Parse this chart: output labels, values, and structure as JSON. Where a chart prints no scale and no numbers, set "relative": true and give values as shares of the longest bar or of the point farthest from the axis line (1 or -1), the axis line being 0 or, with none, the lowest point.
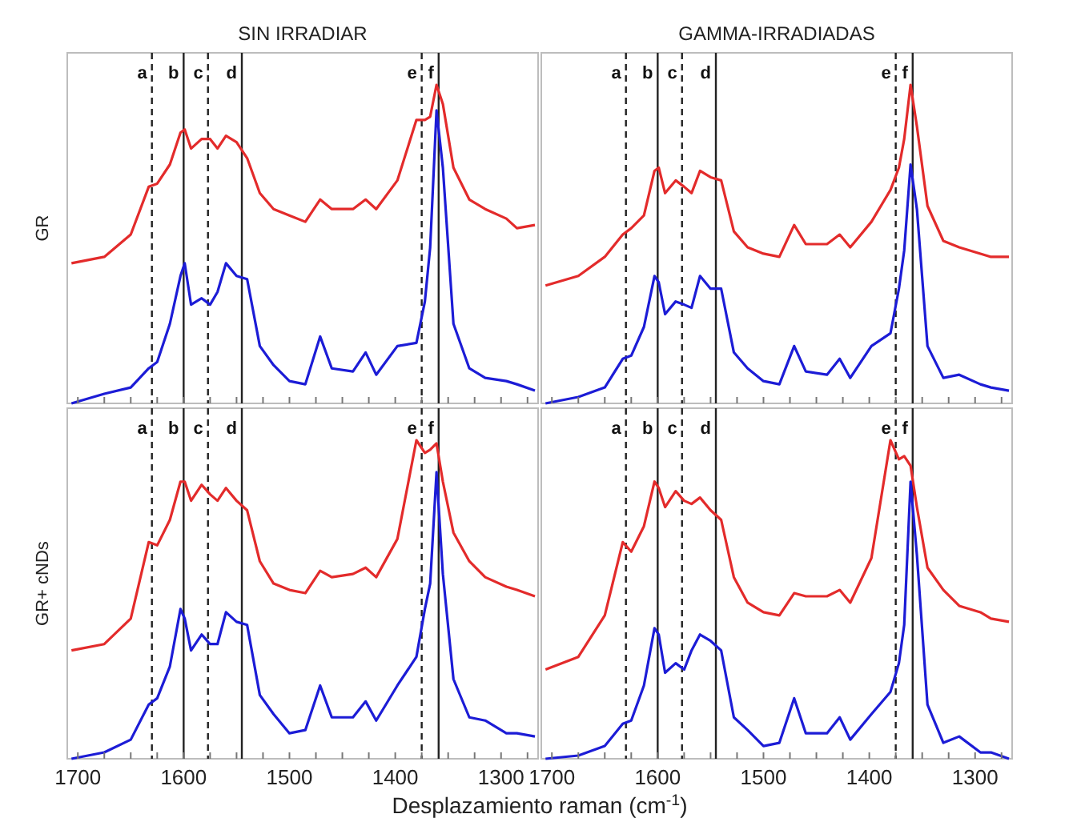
{
  "chart_data": [
    {
      "type": "line",
      "title": "SIN IRRADIAR",
      "ylabel": "GR",
      "relative": true,
      "tick_labels": false,
      "xlim": [
        1710,
        1265
      ],
      "xticks": [
        {
          "value": 1700,
          "label": null
        },
        {
          "value": 1675,
          "label": null
        },
        {
          "value": 1650,
          "label": null
        },
        {
          "value": 1625,
          "label": null
        },
        {
          "value": 1600,
          "label": null
        },
        {
          "value": 1575,
          "label": null
        },
        {
          "value": 1550,
          "label": null
        },
        {
          "value": 1525,
          "label": null
        },
        {
          "value": 1500,
          "label": null
        },
        {
          "value": 1475,
          "label": null
        },
        {
          "value": 1450,
          "label": null
        },
        {
          "value": 1425,
          "label": null
        },
        {
          "value": 1400,
          "label": null
        },
        {
          "value": 1375,
          "label": null
        },
        {
          "value": 1350,
          "label": null
        },
        {
          "value": 1325,
          "label": null
        },
        {
          "value": 1300,
          "label": null
        },
        {
          "value": 1275,
          "label": null
        }
      ],
      "x": [
        1706,
        1675,
        1650,
        1633,
        1625,
        1613,
        1603,
        1599,
        1593,
        1583,
        1575,
        1568,
        1560,
        1550,
        1540,
        1528,
        1515,
        1500,
        1485,
        1471,
        1460,
        1440,
        1428,
        1418,
        1398,
        1380,
        1372,
        1367,
        1361,
        1355,
        1345,
        1330,
        1315,
        1295,
        1285,
        1268
      ],
      "series": [
        {
          "color": "#e32b2b",
          "values": [
            0.44,
            0.46,
            0.53,
            0.68,
            0.69,
            0.75,
            0.85,
            0.86,
            0.8,
            0.83,
            0.83,
            0.8,
            0.84,
            0.82,
            0.77,
            0.66,
            0.61,
            0.59,
            0.57,
            0.64,
            0.61,
            0.61,
            0.64,
            0.61,
            0.7,
            0.89,
            0.89,
            0.9,
            1.0,
            0.94,
            0.74,
            0.64,
            0.61,
            0.58,
            0.55,
            0.56
          ]
        },
        {
          "color": "#1c1cd6",
          "values": [
            0.0,
            0.03,
            0.05,
            0.11,
            0.13,
            0.25,
            0.4,
            0.44,
            0.31,
            0.33,
            0.31,
            0.35,
            0.44,
            0.4,
            0.39,
            0.18,
            0.12,
            0.07,
            0.06,
            0.21,
            0.11,
            0.1,
            0.16,
            0.09,
            0.18,
            0.19,
            0.32,
            0.49,
            0.92,
            0.74,
            0.25,
            0.11,
            0.08,
            0.07,
            0.06,
            0.04
          ]
        }
      ],
      "ref_lines": [
        {
          "axis": "x",
          "value": 1630,
          "label": "a",
          "line_style": "dashed"
        },
        {
          "axis": "x",
          "value": 1600,
          "label": "b",
          "line_style": "solid"
        },
        {
          "axis": "x",
          "value": 1577,
          "label": "c",
          "line_style": "dashed"
        },
        {
          "axis": "x",
          "value": 1545,
          "label": "d",
          "line_style": "solid"
        },
        {
          "axis": "x",
          "value": 1375,
          "label": "e",
          "line_style": "dashed"
        },
        {
          "axis": "x",
          "value": 1359,
          "label": "f",
          "line_style": "solid"
        }
      ]
    },
    {
      "type": "line",
      "title": "GAMMA-IRRADIADAS",
      "relative": true,
      "tick_labels": false,
      "xlim": [
        1710,
        1265
      ],
      "xticks": [
        {
          "value": 1700,
          "label": null
        },
        {
          "value": 1675,
          "label": null
        },
        {
          "value": 1650,
          "label": null
        },
        {
          "value": 1625,
          "label": null
        },
        {
          "value": 1600,
          "label": null
        },
        {
          "value": 1575,
          "label": null
        },
        {
          "value": 1550,
          "label": null
        },
        {
          "value": 1525,
          "label": null
        },
        {
          "value": 1500,
          "label": null
        },
        {
          "value": 1475,
          "label": null
        },
        {
          "value": 1450,
          "label": null
        },
        {
          "value": 1425,
          "label": null
        },
        {
          "value": 1400,
          "label": null
        },
        {
          "value": 1375,
          "label": null
        },
        {
          "value": 1350,
          "label": null
        },
        {
          "value": 1325,
          "label": null
        },
        {
          "value": 1300,
          "label": null
        },
        {
          "value": 1275,
          "label": null
        }
      ],
      "x": [
        1706,
        1675,
        1650,
        1633,
        1625,
        1613,
        1603,
        1599,
        1593,
        1583,
        1575,
        1568,
        1560,
        1550,
        1540,
        1528,
        1515,
        1500,
        1485,
        1471,
        1460,
        1440,
        1428,
        1418,
        1398,
        1380,
        1372,
        1367,
        1361,
        1355,
        1345,
        1330,
        1315,
        1295,
        1285,
        1268
      ],
      "series": [
        {
          "color": "#e32b2b",
          "values": [
            0.37,
            0.4,
            0.46,
            0.53,
            0.55,
            0.59,
            0.73,
            0.74,
            0.66,
            0.7,
            0.68,
            0.66,
            0.73,
            0.71,
            0.7,
            0.54,
            0.49,
            0.47,
            0.46,
            0.56,
            0.5,
            0.5,
            0.53,
            0.49,
            0.57,
            0.67,
            0.74,
            0.83,
            1.0,
            0.87,
            0.62,
            0.51,
            0.49,
            0.47,
            0.46,
            0.46
          ]
        },
        {
          "color": "#1c1cd6",
          "values": [
            0.0,
            0.02,
            0.05,
            0.14,
            0.15,
            0.24,
            0.4,
            0.38,
            0.28,
            0.32,
            0.31,
            0.3,
            0.4,
            0.36,
            0.36,
            0.16,
            0.11,
            0.07,
            0.06,
            0.18,
            0.1,
            0.09,
            0.14,
            0.08,
            0.18,
            0.22,
            0.36,
            0.48,
            0.75,
            0.61,
            0.18,
            0.08,
            0.09,
            0.06,
            0.05,
            0.04
          ]
        }
      ],
      "ref_lines": [
        {
          "axis": "x",
          "value": 1630,
          "label": "a",
          "line_style": "dashed"
        },
        {
          "axis": "x",
          "value": 1600,
          "label": "b",
          "line_style": "solid"
        },
        {
          "axis": "x",
          "value": 1577,
          "label": "c",
          "line_style": "dashed"
        },
        {
          "axis": "x",
          "value": 1545,
          "label": "d",
          "line_style": "solid"
        },
        {
          "axis": "x",
          "value": 1375,
          "label": "e",
          "line_style": "dashed"
        },
        {
          "axis": "x",
          "value": 1359,
          "label": "f",
          "line_style": "solid"
        }
      ]
    },
    {
      "type": "line",
      "ylabel": "GR+ cNDs",
      "xlabel": "Desplazamiento raman (cm$^{-1}$)",
      "relative": true,
      "tick_labels": "x",
      "xlim": [
        1710,
        1265
      ],
      "xticks": [
        1700,
        {
          "value": 1675,
          "label": null
        },
        {
          "value": 1650,
          "label": null
        },
        {
          "value": 1625,
          "label": null
        },
        1600,
        {
          "value": 1575,
          "label": null
        },
        {
          "value": 1550,
          "label": null
        },
        {
          "value": 1525,
          "label": null
        },
        1500,
        {
          "value": 1475,
          "label": null
        },
        {
          "value": 1450,
          "label": null
        },
        {
          "value": 1425,
          "label": null
        },
        1400,
        {
          "value": 1375,
          "label": null
        },
        {
          "value": 1350,
          "label": null
        },
        {
          "value": 1325,
          "label": null
        },
        1300,
        {
          "value": 1275,
          "label": null
        }
      ],
      "x": [
        1706,
        1675,
        1650,
        1633,
        1625,
        1613,
        1603,
        1599,
        1593,
        1583,
        1575,
        1568,
        1560,
        1550,
        1540,
        1528,
        1515,
        1500,
        1485,
        1471,
        1460,
        1440,
        1428,
        1418,
        1398,
        1380,
        1372,
        1367,
        1361,
        1355,
        1345,
        1330,
        1315,
        1295,
        1285,
        1268
      ],
      "series": [
        {
          "color": "#e32b2b",
          "values": [
            0.34,
            0.36,
            0.44,
            0.68,
            0.67,
            0.75,
            0.87,
            0.87,
            0.81,
            0.86,
            0.83,
            0.81,
            0.85,
            0.81,
            0.78,
            0.62,
            0.55,
            0.53,
            0.52,
            0.59,
            0.57,
            0.58,
            0.6,
            0.57,
            0.69,
            1.0,
            0.96,
            0.97,
            0.99,
            0.87,
            0.71,
            0.62,
            0.57,
            0.54,
            0.53,
            0.51
          ]
        },
        {
          "color": "#1c1cd6",
          "values": [
            0.0,
            0.02,
            0.06,
            0.17,
            0.19,
            0.29,
            0.47,
            0.44,
            0.34,
            0.39,
            0.36,
            0.36,
            0.46,
            0.43,
            0.42,
            0.2,
            0.14,
            0.08,
            0.09,
            0.23,
            0.13,
            0.13,
            0.18,
            0.12,
            0.23,
            0.32,
            0.47,
            0.55,
            0.9,
            0.58,
            0.25,
            0.13,
            0.12,
            0.08,
            0.08,
            0.07
          ]
        }
      ],
      "ref_lines": [
        {
          "axis": "x",
          "value": 1630,
          "label": "a",
          "line_style": "dashed"
        },
        {
          "axis": "x",
          "value": 1600,
          "label": "b",
          "line_style": "solid"
        },
        {
          "axis": "x",
          "value": 1577,
          "label": "c",
          "line_style": "dashed"
        },
        {
          "axis": "x",
          "value": 1545,
          "label": "d",
          "line_style": "solid"
        },
        {
          "axis": "x",
          "value": 1375,
          "label": "e",
          "line_style": "dashed"
        },
        {
          "axis": "x",
          "value": 1359,
          "label": "f",
          "line_style": "solid"
        }
      ]
    },
    {
      "type": "line",
      "relative": true,
      "tick_labels": "x",
      "xlim": [
        1710,
        1265
      ],
      "xticks": [
        1700,
        {
          "value": 1675,
          "label": null
        },
        {
          "value": 1650,
          "label": null
        },
        {
          "value": 1625,
          "label": null
        },
        1600,
        {
          "value": 1575,
          "label": null
        },
        {
          "value": 1550,
          "label": null
        },
        {
          "value": 1525,
          "label": null
        },
        1500,
        {
          "value": 1475,
          "label": null
        },
        {
          "value": 1450,
          "label": null
        },
        {
          "value": 1425,
          "label": null
        },
        1400,
        {
          "value": 1375,
          "label": null
        },
        {
          "value": 1350,
          "label": null
        },
        {
          "value": 1325,
          "label": null
        },
        1300,
        {
          "value": 1275,
          "label": null
        }
      ],
      "x": [
        1706,
        1675,
        1650,
        1633,
        1625,
        1613,
        1603,
        1599,
        1593,
        1583,
        1575,
        1568,
        1560,
        1550,
        1540,
        1528,
        1515,
        1500,
        1485,
        1471,
        1460,
        1440,
        1428,
        1418,
        1398,
        1380,
        1372,
        1367,
        1361,
        1355,
        1345,
        1330,
        1315,
        1295,
        1285,
        1268
      ],
      "series": [
        {
          "color": "#e32b2b",
          "values": [
            0.28,
            0.32,
            0.45,
            0.68,
            0.65,
            0.73,
            0.87,
            0.85,
            0.79,
            0.84,
            0.81,
            0.8,
            0.82,
            0.78,
            0.75,
            0.57,
            0.49,
            0.46,
            0.45,
            0.52,
            0.51,
            0.51,
            0.53,
            0.49,
            0.63,
            1.0,
            0.94,
            0.95,
            0.92,
            0.79,
            0.6,
            0.53,
            0.48,
            0.46,
            0.44,
            0.43
          ]
        },
        {
          "color": "#1c1cd6",
          "values": [
            0.0,
            0.01,
            0.04,
            0.11,
            0.12,
            0.23,
            0.41,
            0.39,
            0.27,
            0.3,
            0.28,
            0.34,
            0.39,
            0.37,
            0.34,
            0.13,
            0.09,
            0.04,
            0.05,
            0.19,
            0.08,
            0.08,
            0.13,
            0.06,
            0.14,
            0.21,
            0.3,
            0.42,
            0.87,
            0.64,
            0.17,
            0.05,
            0.07,
            0.02,
            0.02,
            0.0
          ]
        }
      ],
      "ref_lines": [
        {
          "axis": "x",
          "value": 1630,
          "label": "a",
          "line_style": "dashed"
        },
        {
          "axis": "x",
          "value": 1600,
          "label": "b",
          "line_style": "solid"
        },
        {
          "axis": "x",
          "value": 1577,
          "label": "c",
          "line_style": "dashed"
        },
        {
          "axis": "x",
          "value": 1545,
          "label": "d",
          "line_style": "solid"
        },
        {
          "axis": "x",
          "value": 1375,
          "label": "e",
          "line_style": "dashed"
        },
        {
          "axis": "x",
          "value": 1359,
          "label": "f",
          "line_style": "solid"
        }
      ]
    }
  ]
}
